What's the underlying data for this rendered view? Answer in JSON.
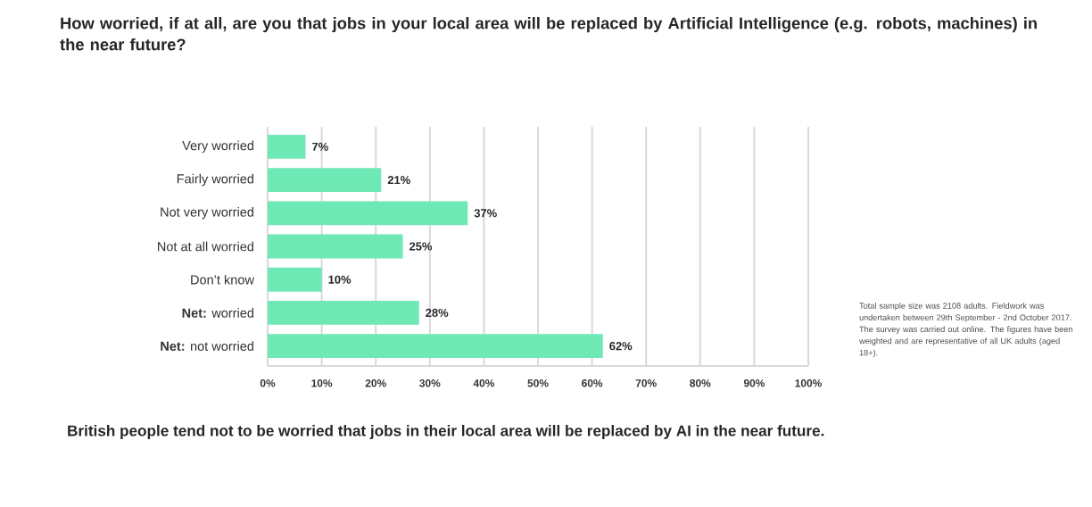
{
  "chart_data": {
    "type": "bar",
    "orientation": "horizontal",
    "title": "How worried, if at all, are you that jobs in your local area will be replaced by Artificial Intelligence (e.g. robots, machines) in the near future?",
    "categories": [
      "Very worried",
      "Fairly worried",
      "Not very worried",
      "Not at all worried",
      "Don’t know",
      "**Net:** worried",
      "**Net:** not worried"
    ],
    "values": [
      7,
      21,
      37,
      25,
      10,
      28,
      62
    ],
    "value_labels": [
      "7%",
      "21%",
      "37%",
      "25%",
      "10%",
      "28%",
      "62%"
    ],
    "color": "#6ee8b5",
    "xlim": [
      0,
      100
    ],
    "xticks": [
      {
        "value": 0,
        "label": "0%"
      },
      {
        "value": 10,
        "label": "10%"
      },
      {
        "value": 20,
        "label": "20%"
      },
      {
        "value": 30,
        "label": "30%"
      },
      {
        "value": 40,
        "label": "40%"
      },
      {
        "value": 50,
        "label": "50%"
      },
      {
        "value": 60,
        "label": "60%"
      },
      {
        "value": 70,
        "label": "70%"
      },
      {
        "value": 80,
        "label": "80%"
      },
      {
        "value": 90,
        "label": "90%"
      },
      {
        "value": 100,
        "label": "100%"
      }
    ],
    "grid": "x",
    "annotations": [
      "Total sample size was 2108 adults. Fieldwork was undertaken between 29th September - 2nd October 2017. The survey was carried out online. The figures have been weighted and are representative of all UK adults (aged 18+).",
      "British people tend not to be worried that jobs in their local area will be replaced by AI in the near future."
    ]
  }
}
